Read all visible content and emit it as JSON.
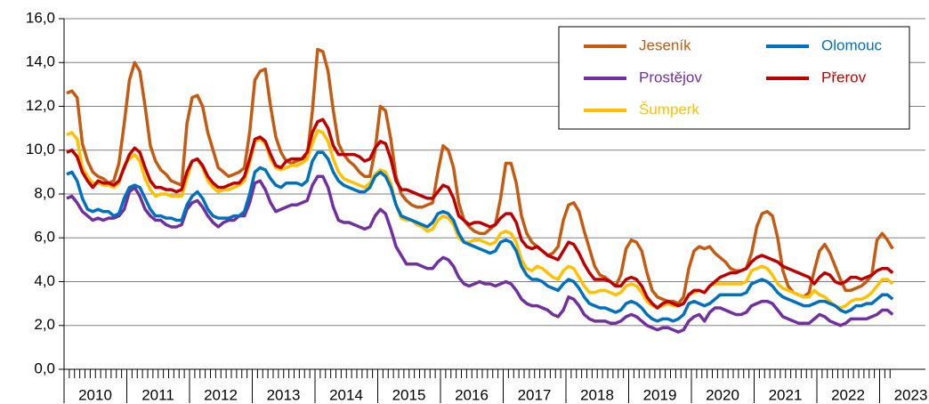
{
  "chart_data": {
    "type": "line",
    "categories": [
      "2010",
      null,
      null,
      null,
      null,
      null,
      null,
      null,
      null,
      null,
      null,
      null,
      "2011",
      null,
      null,
      null,
      null,
      null,
      null,
      null,
      null,
      null,
      null,
      null,
      "2012",
      null,
      null,
      null,
      null,
      null,
      null,
      null,
      null,
      null,
      null,
      null,
      "2013",
      null,
      null,
      null,
      null,
      null,
      null,
      null,
      null,
      null,
      null,
      null,
      "2014",
      null,
      null,
      null,
      null,
      null,
      null,
      null,
      null,
      null,
      null,
      null,
      "2015",
      null,
      null,
      null,
      null,
      null,
      null,
      null,
      null,
      null,
      null,
      null,
      "2016",
      null,
      null,
      null,
      null,
      null,
      null,
      null,
      null,
      null,
      null,
      null,
      "2017",
      null,
      null,
      null,
      null,
      null,
      null,
      null,
      null,
      null,
      null,
      null,
      "2018",
      null,
      null,
      null,
      null,
      null,
      null,
      null,
      null,
      null,
      null,
      null,
      "2019",
      null,
      null,
      null,
      null,
      null,
      null,
      null,
      null,
      null,
      null,
      null,
      "2020",
      null,
      null,
      null,
      null,
      null,
      null,
      null,
      null,
      null,
      null,
      null,
      "2021",
      null,
      null,
      null,
      null,
      null,
      null,
      null,
      null,
      null,
      null,
      null,
      "2022",
      null,
      null,
      null,
      null,
      null,
      null,
      null,
      null,
      null,
      null,
      null,
      "2023",
      null,
      null
    ],
    "series": [
      {
        "name": "Jeseník",
        "color": "#c55a11",
        "values": [
          12.6,
          12.7,
          12.4,
          10.3,
          9.5,
          9.0,
          8.8,
          8.7,
          8.5,
          8.6,
          9.4,
          11.2,
          13.2,
          14.0,
          13.6,
          12.0,
          10.2,
          9.5,
          9.1,
          8.9,
          8.6,
          8.5,
          8.4,
          11.2,
          12.4,
          12.5,
          12.0,
          10.8,
          10.0,
          9.2,
          9.0,
          8.8,
          8.9,
          9.0,
          9.2,
          10.8,
          13.2,
          13.6,
          13.7,
          12.0,
          10.6,
          9.9,
          9.5,
          9.4,
          9.5,
          9.6,
          9.7,
          11.8,
          14.6,
          14.5,
          13.6,
          11.8,
          10.3,
          9.8,
          9.5,
          9.3,
          9.0,
          8.8,
          8.8,
          10.0,
          12.0,
          11.8,
          10.5,
          8.8,
          8.0,
          7.7,
          7.5,
          7.4,
          7.4,
          7.5,
          7.6,
          9.0,
          10.2,
          10.0,
          9.2,
          7.6,
          6.8,
          6.5,
          6.3,
          6.2,
          6.2,
          6.4,
          6.6,
          7.8,
          9.4,
          9.4,
          8.5,
          7.0,
          6.2,
          5.8,
          5.6,
          5.4,
          5.2,
          5.3,
          5.6,
          6.8,
          7.5,
          7.6,
          7.2,
          6.3,
          5.5,
          4.7,
          4.3,
          4.2,
          4.0,
          3.8,
          4.3,
          5.5,
          5.9,
          5.8,
          5.4,
          4.4,
          3.6,
          3.3,
          3.2,
          3.1,
          3.1,
          3.0,
          3.3,
          4.6,
          5.4,
          5.6,
          5.5,
          5.6,
          5.3,
          5.1,
          4.9,
          4.6,
          4.5,
          4.5,
          4.6,
          5.3,
          6.5,
          7.1,
          7.2,
          7.0,
          6.0,
          4.5,
          3.8,
          3.5,
          3.4,
          3.3,
          3.5,
          4.5,
          5.4,
          5.7,
          5.3,
          4.7,
          4.1,
          3.6,
          3.6,
          3.7,
          3.8,
          4.0,
          4.3,
          5.9,
          6.2,
          5.9,
          5.5
        ]
      },
      {
        "name": "Olomouc",
        "color": "#0070c0",
        "values": [
          8.9,
          9.0,
          8.6,
          7.8,
          7.3,
          7.2,
          7.3,
          7.2,
          7.2,
          7.0,
          7.1,
          7.8,
          8.3,
          8.4,
          8.3,
          7.8,
          7.3,
          7.0,
          7.0,
          6.9,
          6.9,
          6.8,
          6.8,
          7.5,
          7.9,
          8.1,
          7.8,
          7.3,
          7.0,
          6.9,
          6.9,
          6.9,
          7.0,
          7.0,
          7.2,
          8.0,
          9.0,
          9.2,
          9.1,
          8.7,
          8.4,
          8.3,
          8.5,
          8.5,
          8.5,
          8.4,
          8.6,
          9.5,
          9.9,
          9.9,
          9.6,
          9.0,
          8.6,
          8.4,
          8.3,
          8.2,
          8.1,
          8.1,
          8.3,
          8.8,
          9.0,
          8.8,
          8.3,
          7.5,
          7.0,
          6.9,
          6.8,
          6.7,
          6.6,
          6.5,
          6.7,
          7.1,
          7.2,
          7.1,
          6.8,
          6.2,
          5.8,
          5.7,
          5.6,
          5.5,
          5.4,
          5.3,
          5.4,
          5.8,
          5.9,
          5.8,
          5.4,
          4.7,
          4.3,
          4.1,
          4.1,
          4.0,
          3.8,
          3.7,
          3.6,
          3.9,
          4.1,
          4.0,
          3.7,
          3.3,
          3.0,
          2.9,
          2.8,
          2.8,
          2.7,
          2.6,
          2.7,
          3.0,
          3.1,
          3.0,
          2.8,
          2.5,
          2.3,
          2.2,
          2.3,
          2.3,
          2.2,
          2.3,
          2.5,
          3.0,
          3.1,
          3.0,
          2.9,
          3.0,
          3.2,
          3.4,
          3.4,
          3.4,
          3.4,
          3.4,
          3.5,
          3.9,
          4.0,
          4.1,
          4.0,
          3.8,
          3.5,
          3.3,
          3.2,
          3.1,
          3.0,
          2.9,
          2.9,
          3.0,
          3.1,
          3.1,
          3.0,
          2.9,
          2.7,
          2.6,
          2.7,
          2.9,
          2.9,
          3.0,
          3.0,
          3.2,
          3.4,
          3.4,
          3.2
        ]
      },
      {
        "name": "Prostějov",
        "color": "#7030a0",
        "values": [
          7.8,
          7.9,
          7.6,
          7.2,
          7.0,
          6.8,
          6.9,
          6.8,
          6.9,
          6.9,
          7.0,
          7.3,
          8.1,
          8.3,
          7.9,
          7.3,
          7.0,
          6.8,
          6.8,
          6.6,
          6.5,
          6.5,
          6.6,
          7.3,
          7.6,
          7.7,
          7.4,
          7.0,
          6.7,
          6.5,
          6.7,
          6.8,
          6.8,
          7.0,
          7.0,
          7.6,
          8.5,
          8.6,
          8.2,
          7.6,
          7.2,
          7.3,
          7.4,
          7.5,
          7.5,
          7.6,
          7.7,
          8.4,
          8.8,
          8.8,
          8.3,
          7.4,
          6.8,
          6.7,
          6.7,
          6.6,
          6.5,
          6.4,
          6.5,
          7.0,
          7.3,
          7.1,
          6.4,
          5.6,
          5.2,
          4.8,
          4.8,
          4.8,
          4.7,
          4.6,
          4.6,
          4.9,
          5.1,
          5.0,
          4.7,
          4.2,
          3.9,
          3.8,
          3.9,
          4.0,
          3.9,
          3.9,
          3.8,
          3.9,
          4.0,
          3.9,
          3.6,
          3.2,
          3.0,
          2.9,
          2.9,
          2.8,
          2.7,
          2.5,
          2.4,
          2.7,
          3.3,
          3.2,
          2.9,
          2.5,
          2.3,
          2.2,
          2.2,
          2.2,
          2.1,
          2.1,
          2.2,
          2.4,
          2.5,
          2.4,
          2.2,
          2.0,
          1.9,
          1.8,
          1.9,
          1.9,
          1.8,
          1.7,
          1.8,
          2.2,
          2.4,
          2.5,
          2.2,
          2.6,
          2.8,
          2.8,
          2.7,
          2.6,
          2.5,
          2.5,
          2.6,
          2.9,
          3.0,
          3.1,
          3.1,
          3.0,
          2.7,
          2.4,
          2.3,
          2.2,
          2.1,
          2.1,
          2.1,
          2.3,
          2.5,
          2.4,
          2.2,
          2.1,
          2.0,
          2.1,
          2.3,
          2.3,
          2.3,
          2.3,
          2.4,
          2.5,
          2.7,
          2.7,
          2.5
        ]
      },
      {
        "name": "Přerov",
        "color": "#c00000",
        "values": [
          9.9,
          10.0,
          9.7,
          9.0,
          8.6,
          8.3,
          8.6,
          8.5,
          8.5,
          8.4,
          8.6,
          9.2,
          9.8,
          10.1,
          9.9,
          9.2,
          8.6,
          8.3,
          8.3,
          8.2,
          8.2,
          8.1,
          8.2,
          9.0,
          9.5,
          9.6,
          9.3,
          8.8,
          8.5,
          8.3,
          8.3,
          8.4,
          8.5,
          8.5,
          8.8,
          9.6,
          10.5,
          10.6,
          10.4,
          9.8,
          9.3,
          9.2,
          9.5,
          9.6,
          9.6,
          9.6,
          9.9,
          10.8,
          11.3,
          11.4,
          11.0,
          10.2,
          9.8,
          9.8,
          9.8,
          9.8,
          9.7,
          9.5,
          9.6,
          10.1,
          10.4,
          10.3,
          9.6,
          8.6,
          8.2,
          8.2,
          8.1,
          8.0,
          7.9,
          7.8,
          7.8,
          8.1,
          8.4,
          8.3,
          7.8,
          7.0,
          6.8,
          6.6,
          6.7,
          6.7,
          6.6,
          6.5,
          6.6,
          6.9,
          7.1,
          7.1,
          6.7,
          5.9,
          5.6,
          5.5,
          5.6,
          5.4,
          5.2,
          5.1,
          5.0,
          5.4,
          5.8,
          5.7,
          5.3,
          4.8,
          4.4,
          4.1,
          4.1,
          4.1,
          4.0,
          3.8,
          3.8,
          4.1,
          4.2,
          4.1,
          3.8,
          3.3,
          3.0,
          2.8,
          3.0,
          3.1,
          3.0,
          2.9,
          3.0,
          3.4,
          3.6,
          3.6,
          3.5,
          3.8,
          4.0,
          4.2,
          4.3,
          4.4,
          4.4,
          4.5,
          4.6,
          4.9,
          5.1,
          5.2,
          5.1,
          5.0,
          4.9,
          4.7,
          4.6,
          4.5,
          4.4,
          4.3,
          4.2,
          3.9,
          4.2,
          4.4,
          4.3,
          4.0,
          3.9,
          4.0,
          4.2,
          4.2,
          4.1,
          4.2,
          4.3,
          4.5,
          4.6,
          4.6,
          4.4
        ]
      },
      {
        "name": "Šumperk",
        "color": "#ffc000",
        "values": [
          10.7,
          10.8,
          10.5,
          9.2,
          8.8,
          8.5,
          8.5,
          8.4,
          8.4,
          8.3,
          8.5,
          9.3,
          9.6,
          9.8,
          9.5,
          8.7,
          8.2,
          7.9,
          8.0,
          8.0,
          7.9,
          7.9,
          7.9,
          8.7,
          9.5,
          9.6,
          9.2,
          8.6,
          8.3,
          8.1,
          8.2,
          8.2,
          8.3,
          8.4,
          8.6,
          9.4,
          10.4,
          10.5,
          10.3,
          9.6,
          9.2,
          9.1,
          9.2,
          9.3,
          9.3,
          9.4,
          9.6,
          10.3,
          10.9,
          10.8,
          10.4,
          9.6,
          9.0,
          8.7,
          8.6,
          8.5,
          8.4,
          8.3,
          8.5,
          8.9,
          9.1,
          9.0,
          8.5,
          7.5,
          6.9,
          6.8,
          6.8,
          6.6,
          6.5,
          6.3,
          6.4,
          6.8,
          7.0,
          6.9,
          6.6,
          6.0,
          5.8,
          5.8,
          5.9,
          5.9,
          5.8,
          5.7,
          5.8,
          6.2,
          6.3,
          6.2,
          5.8,
          5.0,
          4.6,
          4.5,
          4.7,
          4.6,
          4.4,
          4.2,
          4.1,
          4.5,
          4.7,
          4.6,
          4.2,
          3.8,
          3.5,
          3.5,
          3.6,
          3.6,
          3.5,
          3.4,
          3.5,
          3.8,
          3.9,
          3.8,
          3.5,
          3.1,
          2.9,
          2.8,
          2.9,
          3.0,
          2.9,
          2.9,
          3.0,
          3.4,
          3.5,
          3.6,
          3.5,
          3.8,
          3.9,
          3.9,
          3.9,
          3.9,
          3.9,
          3.9,
          4.0,
          4.5,
          4.6,
          4.7,
          4.6,
          4.3,
          3.9,
          3.7,
          3.6,
          3.5,
          3.4,
          3.3,
          3.3,
          3.6,
          3.4,
          3.3,
          3.1,
          2.9,
          2.8,
          2.9,
          3.1,
          3.2,
          3.2,
          3.3,
          3.5,
          3.8,
          4.1,
          4.1,
          3.9
        ]
      }
    ],
    "ylim": [
      0,
      16
    ],
    "yticks": [
      {
        "value": 0,
        "label": "0,0"
      },
      {
        "value": 2,
        "label": "2,0"
      },
      {
        "value": 4,
        "label": "4,0"
      },
      {
        "value": 6,
        "label": "6,0"
      },
      {
        "value": 8,
        "label": "8,0"
      },
      {
        "value": 10,
        "label": "10,0"
      },
      {
        "value": 12,
        "label": "12,0"
      },
      {
        "value": 14,
        "label": "14,0"
      },
      {
        "value": 16,
        "label": "16,0"
      }
    ],
    "grid": true,
    "legend": "upper right"
  }
}
